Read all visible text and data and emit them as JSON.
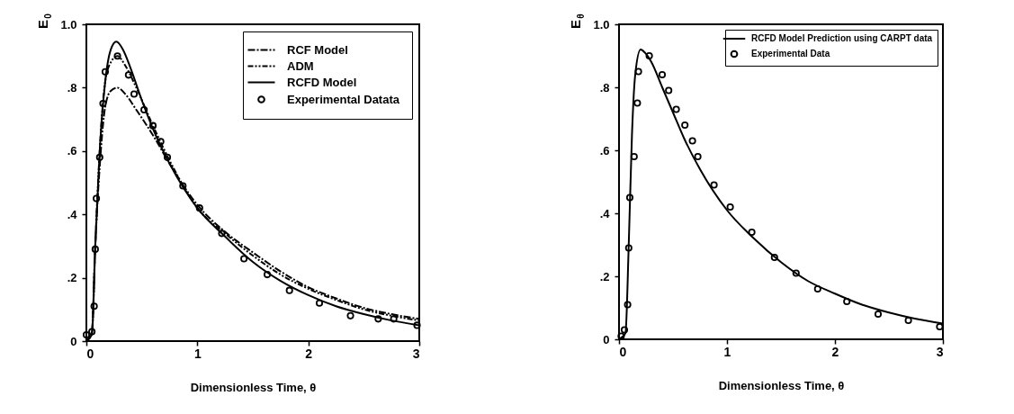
{
  "chart_data": [
    {
      "type": "line",
      "xlabel": "Dimensionless Time, θ",
      "ylabel": "E$_{0}$",
      "xlim": [
        0,
        3
      ],
      "ylim": [
        0,
        1
      ],
      "xticks": [
        0,
        1,
        2,
        3
      ],
      "yticks": [
        {
          "value": 0,
          "label": "0"
        },
        {
          "value": 0.2,
          "label": ".2"
        },
        {
          "value": 0.4,
          "label": ".4"
        },
        {
          "value": 0.6,
          "label": ".6"
        },
        {
          "value": 0.8,
          "label": ".8"
        },
        {
          "value": 1,
          "label": "1.0"
        }
      ],
      "legend": "top right",
      "grid": false,
      "series": [
        {
          "name": "RCF Model",
          "color": "#000000",
          "line_style": "dashed",
          "x": [
            0,
            0.05,
            0.08,
            0.12,
            0.17,
            0.22,
            0.28,
            0.35,
            0.45,
            0.6,
            0.75,
            1.0,
            1.25,
            1.5,
            1.75,
            2.0,
            2.25,
            2.5,
            2.75,
            3.0
          ],
          "values": [
            0,
            0.03,
            0.3,
            0.55,
            0.74,
            0.79,
            0.8,
            0.78,
            0.73,
            0.65,
            0.56,
            0.43,
            0.345,
            0.28,
            0.22,
            0.17,
            0.135,
            0.105,
            0.085,
            0.07
          ]
        },
        {
          "name": "ADM",
          "color": "#000000",
          "line_style": "dotted",
          "x": [
            0,
            0.05,
            0.08,
            0.12,
            0.17,
            0.22,
            0.28,
            0.35,
            0.45,
            0.6,
            0.75,
            1.0,
            1.25,
            1.5,
            1.75,
            2.0,
            2.25,
            2.5,
            2.75,
            3.0
          ],
          "values": [
            0,
            0.03,
            0.3,
            0.6,
            0.82,
            0.88,
            0.9,
            0.87,
            0.8,
            0.68,
            0.57,
            0.42,
            0.34,
            0.27,
            0.21,
            0.165,
            0.13,
            0.1,
            0.08,
            0.065
          ]
        },
        {
          "name": "RCFD Model",
          "color": "#000000",
          "line_style": "solid",
          "x": [
            0,
            0.05,
            0.08,
            0.12,
            0.17,
            0.22,
            0.27,
            0.33,
            0.4,
            0.5,
            0.6,
            0.75,
            1.0,
            1.25,
            1.5,
            1.75,
            2.0,
            2.25,
            2.5,
            2.75,
            3.0
          ],
          "values": [
            0,
            0.02,
            0.3,
            0.6,
            0.82,
            0.92,
            0.945,
            0.92,
            0.86,
            0.76,
            0.67,
            0.56,
            0.42,
            0.33,
            0.25,
            0.19,
            0.145,
            0.11,
            0.085,
            0.065,
            0.05
          ]
        },
        {
          "name": "Experimental Datata",
          "type": "scatter",
          "marker": "circle",
          "color": "#000000",
          "x": [
            0.0,
            0.05,
            0.07,
            0.08,
            0.09,
            0.12,
            0.15,
            0.17,
            0.28,
            0.38,
            0.43,
            0.52,
            0.6,
            0.67,
            0.73,
            0.87,
            1.02,
            1.22,
            1.42,
            1.63,
            1.83,
            2.1,
            2.38,
            2.63,
            2.77,
            2.98
          ],
          "values": [
            0.02,
            0.03,
            0.11,
            0.29,
            0.45,
            0.58,
            0.75,
            0.85,
            0.9,
            0.84,
            0.78,
            0.73,
            0.68,
            0.63,
            0.58,
            0.49,
            0.42,
            0.34,
            0.26,
            0.21,
            0.16,
            0.12,
            0.08,
            0.07,
            0.07,
            0.05
          ]
        }
      ]
    },
    {
      "type": "line",
      "xlabel": "Dimensionless Time, θ",
      "ylabel": "E$_{θ}$",
      "xlim": [
        0,
        3
      ],
      "ylim": [
        0,
        1
      ],
      "xticks": [
        0,
        1,
        2,
        3
      ],
      "yticks": [
        {
          "value": 0,
          "label": "0"
        },
        {
          "value": 0.2,
          "label": ".2"
        },
        {
          "value": 0.4,
          "label": ".4"
        },
        {
          "value": 0.6,
          "label": ".6"
        },
        {
          "value": 0.8,
          "label": ".8"
        },
        {
          "value": 1,
          "label": "1.0"
        }
      ],
      "legend": "top right",
      "grid": false,
      "series": [
        {
          "name": "RCFD Model Prediction using CARPT data",
          "color": "#000000",
          "line_style": "solid",
          "x": [
            0,
            0.06,
            0.09,
            0.12,
            0.15,
            0.2,
            0.24,
            0.3,
            0.4,
            0.5,
            0.6,
            0.75,
            1.0,
            1.25,
            1.5,
            1.75,
            2.0,
            2.25,
            2.5,
            2.75,
            3.0
          ],
          "values": [
            0,
            0.02,
            0.3,
            0.65,
            0.84,
            0.92,
            0.91,
            0.88,
            0.8,
            0.72,
            0.64,
            0.54,
            0.41,
            0.32,
            0.245,
            0.185,
            0.145,
            0.11,
            0.085,
            0.065,
            0.05
          ]
        },
        {
          "name": "Experimental Data",
          "type": "scatter",
          "marker": "circle",
          "color": "#000000",
          "x": [
            0.02,
            0.05,
            0.08,
            0.09,
            0.1,
            0.14,
            0.17,
            0.18,
            0.28,
            0.4,
            0.46,
            0.53,
            0.61,
            0.68,
            0.73,
            0.88,
            1.03,
            1.23,
            1.44,
            1.64,
            1.84,
            2.11,
            2.4,
            2.68,
            2.97
          ],
          "values": [
            0.01,
            0.03,
            0.11,
            0.29,
            0.45,
            0.58,
            0.75,
            0.85,
            0.9,
            0.84,
            0.79,
            0.73,
            0.68,
            0.63,
            0.58,
            0.49,
            0.42,
            0.34,
            0.26,
            0.21,
            0.16,
            0.12,
            0.08,
            0.06,
            0.04
          ]
        }
      ]
    }
  ]
}
